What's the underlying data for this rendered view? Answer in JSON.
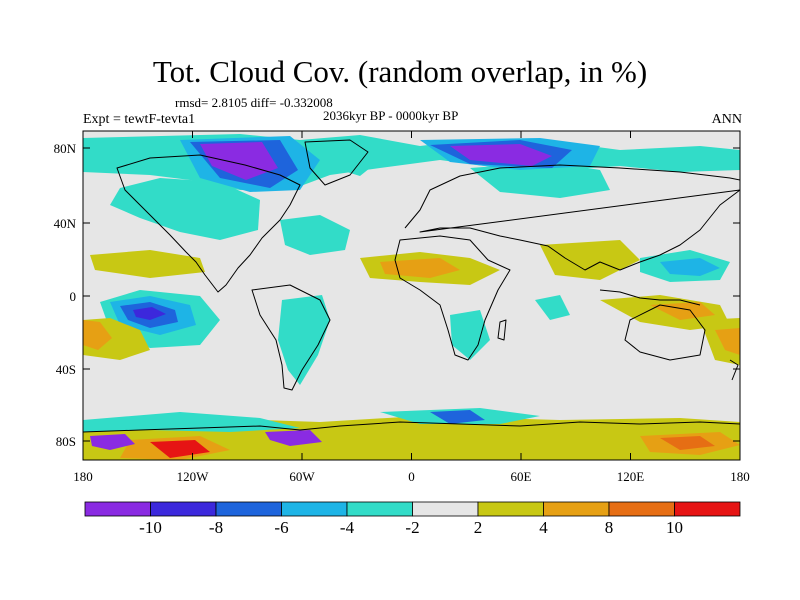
{
  "title": "Tot. Cloud Cov. (random overlap, in %)",
  "stats": "rmsd= 2.8105 diff= -0.332008",
  "period": "2036kyr BP - 0000kyr BP",
  "experiment": "Expt = tewtF-tevta1",
  "season": "ANN",
  "lat_ticks": [
    "80N",
    "40N",
    "0",
    "40S",
    "80S"
  ],
  "lon_ticks": [
    "180",
    "120W",
    "60W",
    "0",
    "60E",
    "120E",
    "180"
  ],
  "colorbar": {
    "labels": [
      "-10",
      "-8",
      "-6",
      "-4",
      "-2",
      "2",
      "4",
      "8",
      "10"
    ],
    "colors": [
      "#8a2be2",
      "#3c28dc",
      "#1e64dc",
      "#1eb4e6",
      "#32dcc8",
      "#e6e6e6",
      "#c8c814",
      "#e6a014",
      "#e66e14",
      "#e61414"
    ]
  }
}
